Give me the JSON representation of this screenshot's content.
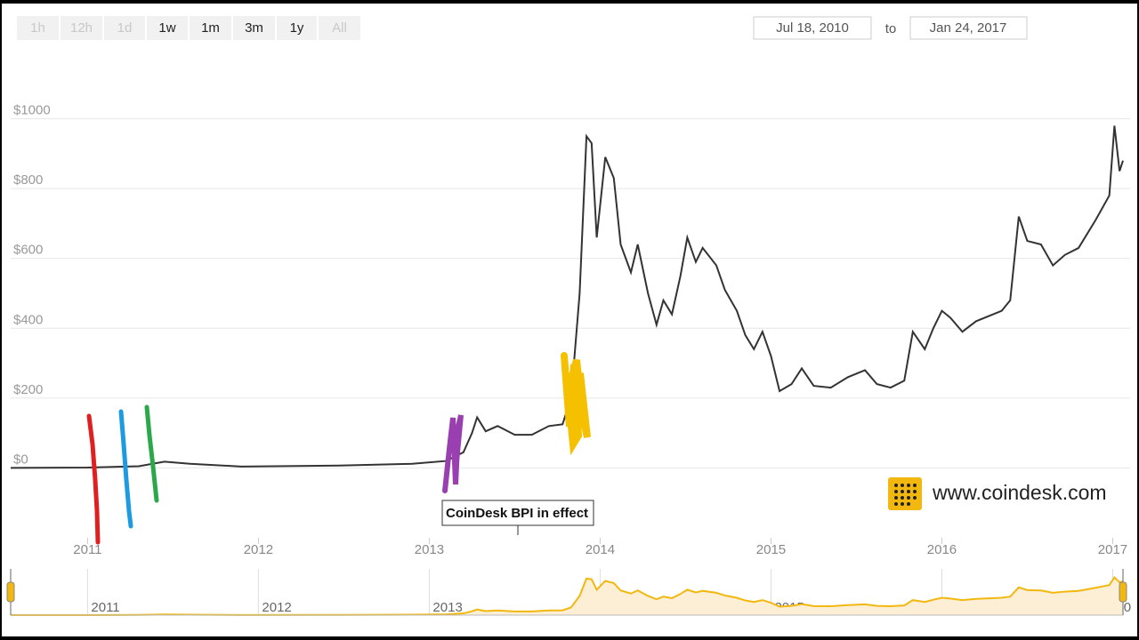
{
  "range_buttons": [
    "1h",
    "12h",
    "1d",
    "1w",
    "1m",
    "3m",
    "1y",
    "All"
  ],
  "date_from": "Jul 18, 2010",
  "date_to_word": "to",
  "date_to": "Jan 24, 2017",
  "logo": "www.coindesk.com",
  "navigator_labels": [
    "2011",
    "2012",
    "2013",
    "2014",
    "2015",
    "2016",
    "20"
  ],
  "chart_data": {
    "type": "line",
    "annotation": "CoinDesk BPI in effect",
    "x": [
      2010.55,
      2011.0,
      2011.3,
      2011.45,
      2011.6,
      2011.9,
      2012.5,
      2012.9,
      2013.1,
      2013.2,
      2013.25,
      2013.28,
      2013.33,
      2013.4,
      2013.5,
      2013.6,
      2013.7,
      2013.78,
      2013.83,
      2013.88,
      2013.92,
      2013.95,
      2013.98,
      2014.03,
      2014.08,
      2014.12,
      2014.18,
      2014.22,
      2014.28,
      2014.33,
      2014.37,
      2014.42,
      2014.47,
      2014.51,
      2014.56,
      2014.6,
      2014.68,
      2014.73,
      2014.8,
      2014.85,
      2014.9,
      2014.95,
      2015.0,
      2015.05,
      2015.12,
      2015.18,
      2015.25,
      2015.35,
      2015.45,
      2015.55,
      2015.62,
      2015.7,
      2015.78,
      2015.83,
      2015.9,
      2015.95,
      2016.0,
      2016.05,
      2016.12,
      2016.2,
      2016.35,
      2016.4,
      2016.45,
      2016.5,
      2016.58,
      2016.65,
      2016.72,
      2016.8,
      2016.9,
      2016.98,
      2017.01,
      2017.04,
      2017.06
    ],
    "series": [
      {
        "name": "Price",
        "color": "#333333",
        "values": [
          0,
          1,
          5,
          18,
          12,
          4,
          7,
          12,
          20,
          45,
          100,
          145,
          105,
          120,
          95,
          95,
          120,
          125,
          200,
          500,
          950,
          930,
          660,
          890,
          830,
          640,
          560,
          640,
          500,
          410,
          480,
          440,
          550,
          660,
          590,
          630,
          580,
          510,
          450,
          380,
          340,
          390,
          320,
          220,
          240,
          285,
          235,
          230,
          260,
          280,
          240,
          230,
          250,
          390,
          340,
          400,
          450,
          430,
          390,
          420,
          450,
          480,
          720,
          650,
          640,
          580,
          610,
          630,
          710,
          780,
          980,
          850,
          880
        ]
      }
    ],
    "xlim": [
      2010.55,
      2017.06
    ],
    "xticks": [
      2011,
      2012,
      2013,
      2014,
      2015,
      2016,
      2017
    ],
    "ylim": [
      -200,
      1200
    ],
    "yticks": [
      {
        "value": 0,
        "label": "$0"
      },
      {
        "value": 200,
        "label": "$200"
      },
      {
        "value": 400,
        "label": "$400"
      },
      {
        "value": 600,
        "label": "$600"
      },
      {
        "value": 800,
        "label": "$800"
      },
      {
        "value": 1000,
        "label": "$1000"
      }
    ],
    "grid": true,
    "navigator_color": "#f2b80f"
  }
}
